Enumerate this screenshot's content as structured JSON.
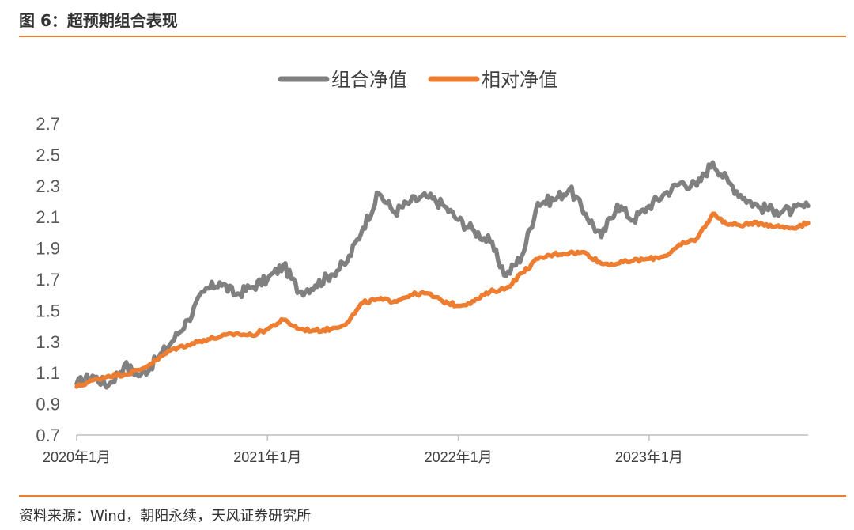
{
  "header": {
    "title": "图 6：超预期组合表现"
  },
  "footer": {
    "source": "资料来源：Wind，朝阳永续，天风证券研究所"
  },
  "colors": {
    "accent": "#ED7D31",
    "gray_series": "#808080",
    "orange_series": "#ED7D31"
  },
  "chart_data": {
    "type": "line",
    "title": "",
    "xlabel": "",
    "ylabel": "",
    "ylim": [
      0.7,
      2.7
    ],
    "yticks": [
      "0.7",
      "0.9",
      "1.1",
      "1.3",
      "1.5",
      "1.7",
      "1.9",
      "2.1",
      "2.3",
      "2.5",
      "2.7"
    ],
    "xticks": [
      {
        "date": "2020-01",
        "label": "2020年1月"
      },
      {
        "date": "2021-01",
        "label": "2021年1月"
      },
      {
        "date": "2022-01",
        "label": "2022年1月"
      },
      {
        "date": "2023-01",
        "label": "2023年1月"
      }
    ],
    "xrange": [
      "2020-01",
      "2023-11"
    ],
    "legend_position": "top",
    "grid": false,
    "series": [
      {
        "name": "组合净值",
        "color": "#808080",
        "points": [
          [
            "2020-01",
            1.03
          ],
          [
            "2020-02",
            1.08
          ],
          [
            "2020-03",
            1.02
          ],
          [
            "2020-04",
            1.15
          ],
          [
            "2020-05",
            1.08
          ],
          [
            "2020-06",
            1.18
          ],
          [
            "2020-07",
            1.3
          ],
          [
            "2020-08",
            1.44
          ],
          [
            "2020-09",
            1.62
          ],
          [
            "2020-10",
            1.68
          ],
          [
            "2020-11",
            1.6
          ],
          [
            "2020-12",
            1.65
          ],
          [
            "2021-01",
            1.7
          ],
          [
            "2021-02",
            1.79
          ],
          [
            "2021-03",
            1.62
          ],
          [
            "2021-04",
            1.66
          ],
          [
            "2021-05",
            1.73
          ],
          [
            "2021-06",
            1.81
          ],
          [
            "2021-07",
            2.03
          ],
          [
            "2021-08",
            2.25
          ],
          [
            "2021-09",
            2.13
          ],
          [
            "2021-10",
            2.2
          ],
          [
            "2021-11",
            2.23
          ],
          [
            "2021-12",
            2.18
          ],
          [
            "2022-01",
            2.08
          ],
          [
            "2022-02",
            2.01
          ],
          [
            "2022-03",
            1.94
          ],
          [
            "2022-04",
            1.72
          ],
          [
            "2022-05",
            1.85
          ],
          [
            "2022-06",
            2.19
          ],
          [
            "2022-07",
            2.21
          ],
          [
            "2022-08",
            2.28
          ],
          [
            "2022-09",
            2.12
          ],
          [
            "2022-10",
            1.97
          ],
          [
            "2022-11",
            2.18
          ],
          [
            "2022-12",
            2.08
          ],
          [
            "2023-01",
            2.17
          ],
          [
            "2023-02",
            2.25
          ],
          [
            "2023-03",
            2.32
          ],
          [
            "2023-04",
            2.3
          ],
          [
            "2023-05",
            2.45
          ],
          [
            "2023-06",
            2.32
          ],
          [
            "2023-07",
            2.22
          ],
          [
            "2023-08",
            2.16
          ],
          [
            "2023-09",
            2.14
          ],
          [
            "2023-10",
            2.14
          ],
          [
            "2023-11",
            2.17
          ]
        ]
      },
      {
        "name": "相对净值",
        "color": "#ED7D31",
        "points": [
          [
            "2020-01",
            1.01
          ],
          [
            "2020-02",
            1.05
          ],
          [
            "2020-03",
            1.08
          ],
          [
            "2020-04",
            1.09
          ],
          [
            "2020-05",
            1.12
          ],
          [
            "2020-06",
            1.18
          ],
          [
            "2020-07",
            1.25
          ],
          [
            "2020-08",
            1.28
          ],
          [
            "2020-09",
            1.31
          ],
          [
            "2020-10",
            1.33
          ],
          [
            "2020-11",
            1.35
          ],
          [
            "2020-12",
            1.34
          ],
          [
            "2021-01",
            1.38
          ],
          [
            "2021-02",
            1.44
          ],
          [
            "2021-03",
            1.38
          ],
          [
            "2021-04",
            1.37
          ],
          [
            "2021-05",
            1.38
          ],
          [
            "2021-06",
            1.42
          ],
          [
            "2021-07",
            1.55
          ],
          [
            "2021-08",
            1.57
          ],
          [
            "2021-09",
            1.56
          ],
          [
            "2021-10",
            1.6
          ],
          [
            "2021-11",
            1.61
          ],
          [
            "2021-12",
            1.56
          ],
          [
            "2022-01",
            1.53
          ],
          [
            "2022-02",
            1.56
          ],
          [
            "2022-03",
            1.62
          ],
          [
            "2022-04",
            1.64
          ],
          [
            "2022-05",
            1.74
          ],
          [
            "2022-06",
            1.83
          ],
          [
            "2022-07",
            1.86
          ],
          [
            "2022-08",
            1.87
          ],
          [
            "2022-09",
            1.87
          ],
          [
            "2022-10",
            1.8
          ],
          [
            "2022-11",
            1.8
          ],
          [
            "2022-12",
            1.82
          ],
          [
            "2023-01",
            1.83
          ],
          [
            "2023-02",
            1.85
          ],
          [
            "2023-03",
            1.92
          ],
          [
            "2023-04",
            1.96
          ],
          [
            "2023-05",
            2.12
          ],
          [
            "2023-06",
            2.05
          ],
          [
            "2023-07",
            2.05
          ],
          [
            "2023-08",
            2.06
          ],
          [
            "2023-09",
            2.04
          ],
          [
            "2023-10",
            2.03
          ],
          [
            "2023-11",
            2.06
          ]
        ]
      }
    ]
  }
}
